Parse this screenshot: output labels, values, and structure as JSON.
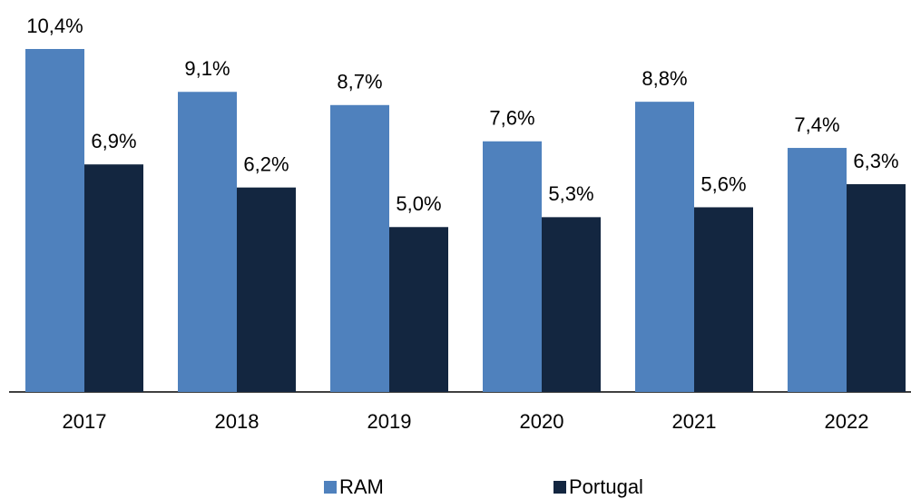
{
  "chart_data": {
    "type": "bar",
    "categories": [
      "2017",
      "2018",
      "2019",
      "2020",
      "2021",
      "2022"
    ],
    "series": [
      {
        "name": "RAM",
        "color": "#4f81bd",
        "values": [
          10.4,
          9.1,
          8.7,
          7.6,
          8.8,
          7.4
        ],
        "value_labels": [
          "10,4%",
          "9,1%",
          "8,7%",
          "7,6%",
          "8,8%",
          "7,4%"
        ]
      },
      {
        "name": "Portugal",
        "color": "#132640",
        "values": [
          6.9,
          6.2,
          5.0,
          5.3,
          5.6,
          6.3
        ],
        "value_labels": [
          "6,9%",
          "6,2%",
          "5,0%",
          "5,3%",
          "5,6%",
          "6,3%"
        ]
      }
    ]
  }
}
